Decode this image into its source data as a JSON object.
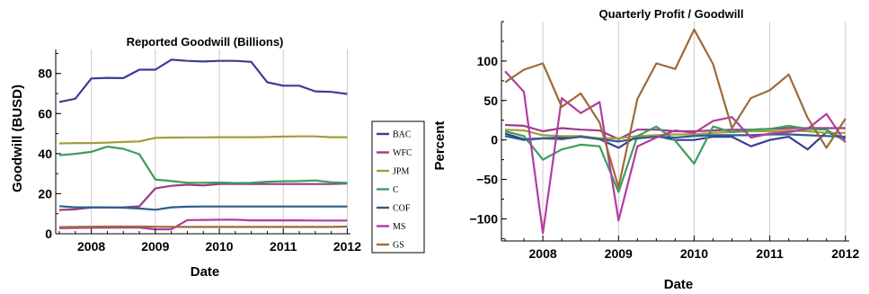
{
  "chart_data": [
    {
      "type": "line",
      "title": "Reported Goodwill (Billions)",
      "xlabel": "Date",
      "ylabel": "Goodwill (BUSD)",
      "xlim": [
        2007.5,
        2012.05
      ],
      "ylim": [
        0,
        92
      ],
      "xticks": [
        2008,
        2009,
        2010,
        2011,
        2012
      ],
      "yticks": [
        0,
        20,
        40,
        60,
        80
      ],
      "grid": "vertical",
      "x": [
        2007.5,
        2007.75,
        2008.0,
        2008.25,
        2008.5,
        2008.75,
        2009.0,
        2009.25,
        2009.5,
        2009.75,
        2010.0,
        2010.25,
        2010.5,
        2010.75,
        2011.0,
        2011.25,
        2011.5,
        2011.75,
        2012.0
      ],
      "series": [
        {
          "name": "BAC",
          "color": "#3a3d97",
          "values": [
            65.8,
            67.4,
            77.5,
            77.8,
            77.7,
            81.9,
            81.9,
            86.9,
            86.3,
            86.0,
            86.3,
            86.3,
            85.8,
            75.6,
            73.9,
            73.9,
            71.1,
            70.8,
            69.8
          ]
        },
        {
          "name": "WFC",
          "color": "#9a3d86",
          "values": [
            11.9,
            12.2,
            13.1,
            13.1,
            13.2,
            13.7,
            22.6,
            23.9,
            24.5,
            24.1,
            24.8,
            24.9,
            24.8,
            24.8,
            24.8,
            24.8,
            24.8,
            24.8,
            25.1
          ]
        },
        {
          "name": "JPM",
          "color": "#a39d3b",
          "values": [
            45.1,
            45.3,
            45.3,
            45.5,
            45.8,
            46.1,
            47.9,
            48.0,
            48.1,
            48.1,
            48.2,
            48.2,
            48.2,
            48.3,
            48.5,
            48.6,
            48.6,
            48.2,
            48.2
          ]
        },
        {
          "name": "C",
          "color": "#3c9e5c",
          "values": [
            39.2,
            39.9,
            40.9,
            43.5,
            42.4,
            39.7,
            27.1,
            26.3,
            25.5,
            25.4,
            25.6,
            25.3,
            25.4,
            26.0,
            26.2,
            26.3,
            26.6,
            25.7,
            25.4
          ]
        },
        {
          "name": "COF",
          "color": "#2a5f8a",
          "values": [
            13.8,
            13.2,
            13.2,
            13.2,
            13.0,
            12.6,
            12.0,
            13.2,
            13.5,
            13.6,
            13.6,
            13.6,
            13.6,
            13.6,
            13.6,
            13.6,
            13.6,
            13.6,
            13.6
          ]
        },
        {
          "name": "MS",
          "color": "#b23ca1",
          "values": [
            2.8,
            2.9,
            3.0,
            3.0,
            3.1,
            3.1,
            2.2,
            2.2,
            6.8,
            6.9,
            7.0,
            7.0,
            6.7,
            6.7,
            6.7,
            6.7,
            6.6,
            6.6,
            6.6
          ]
        },
        {
          "name": "GS",
          "color": "#9c6b3a",
          "values": [
            3.3,
            3.4,
            3.5,
            3.6,
            3.6,
            3.6,
            3.5,
            3.4,
            3.4,
            3.4,
            3.4,
            3.4,
            3.4,
            3.4,
            3.4,
            3.4,
            3.4,
            3.4,
            3.6
          ]
        }
      ]
    },
    {
      "type": "line",
      "title": "Quarterly Profit / Goodwill",
      "xlabel": "Date",
      "ylabel": "Percent",
      "xlim": [
        2007.5,
        2012.05
      ],
      "ylim": [
        -128,
        150
      ],
      "xticks": [
        2008,
        2009,
        2010,
        2011,
        2012
      ],
      "yticks": [
        -100,
        -50,
        0,
        50,
        100
      ],
      "grid": "vertical",
      "x": [
        2007.5,
        2007.75,
        2008.0,
        2008.25,
        2008.5,
        2008.75,
        2009.0,
        2009.25,
        2009.5,
        2009.75,
        2010.0,
        2010.25,
        2010.5,
        2010.75,
        2011.0,
        2011.25,
        2011.5,
        2011.75,
        2012.0
      ],
      "series": [
        {
          "name": "BAC",
          "color": "#3a3d97",
          "values": [
            8,
            1,
            2,
            3,
            5,
            1,
            -10,
            5,
            5,
            0,
            0,
            4,
            4,
            -8,
            0,
            4,
            -12,
            10,
            2
          ]
        },
        {
          "name": "WFC",
          "color": "#9a3d86",
          "values": [
            19,
            18,
            11,
            15,
            13,
            12,
            1,
            13,
            13,
            11,
            11,
            12,
            13,
            13,
            14,
            15,
            15,
            15,
            15
          ]
        },
        {
          "name": "JPM",
          "color": "#a39d3b",
          "values": [
            13,
            12,
            6,
            5,
            5,
            2,
            2,
            5,
            6,
            7,
            7,
            9,
            10,
            11,
            11,
            12,
            11,
            9,
            9
          ]
        },
        {
          "name": "C",
          "color": "#3c9e5c",
          "values": [
            11,
            5,
            -25,
            -12,
            -6,
            -8,
            -66,
            5,
            17,
            -1,
            -30,
            17,
            10,
            13,
            14,
            18,
            14,
            13,
            -2
          ]
        },
        {
          "name": "COF",
          "color": "#2a5f8a",
          "values": [
            5,
            0,
            2,
            1,
            4,
            1,
            -2,
            2,
            4,
            3,
            5,
            6,
            6,
            6,
            7,
            7,
            6,
            5,
            4
          ]
        },
        {
          "name": "MS",
          "color": "#b23ca1",
          "values": [
            87,
            61,
            -118,
            53,
            34,
            48,
            -102,
            -8,
            3,
            12,
            9,
            24,
            29,
            3,
            8,
            10,
            14,
            33,
            -3
          ]
        },
        {
          "name": "GS",
          "color": "#9c6b3a",
          "values": [
            73,
            89,
            97,
            42,
            59,
            22,
            -60,
            52,
            97,
            90,
            140,
            96,
            15,
            53,
            63,
            83,
            28,
            -10,
            27
          ]
        }
      ]
    }
  ]
}
